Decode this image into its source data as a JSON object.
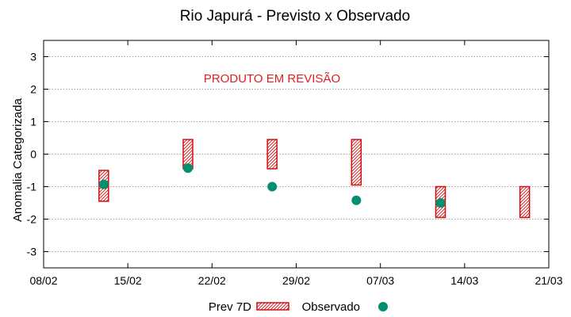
{
  "chart_data": {
    "type": "scatter",
    "title": "Rio Japurá - Previsto x Observado",
    "ylabel": "Anomalia Categorizada",
    "xlabel": "",
    "ylim": [
      -3.5,
      3.5
    ],
    "yticks": [
      -3,
      -2,
      -1,
      0,
      1,
      2,
      3
    ],
    "xlim": [
      "08/02",
      "21/03"
    ],
    "xticks": [
      "08/02",
      "15/02",
      "22/02",
      "29/02",
      "07/03",
      "14/03",
      "21/03"
    ],
    "grid": true,
    "annotation": {
      "text": "PRODUTO EM REVISÃO",
      "color": "#e02020"
    },
    "legend": {
      "position": "bottom",
      "entries": [
        "Prev 7D",
        "Observado"
      ]
    },
    "series": [
      {
        "name": "Prev 7D",
        "kind": "range-bar",
        "color": "#d01010",
        "points": [
          {
            "x": "13/02",
            "low": -1.45,
            "high": -0.5
          },
          {
            "x": "20/02",
            "low": -0.45,
            "high": 0.45
          },
          {
            "x": "27/02",
            "low": -0.45,
            "high": 0.45
          },
          {
            "x": "05/03",
            "low": -0.95,
            "high": 0.45
          },
          {
            "x": "12/03",
            "low": -1.95,
            "high": -1.0
          },
          {
            "x": "19/03",
            "low": -1.95,
            "high": -1.0
          }
        ]
      },
      {
        "name": "Observado",
        "kind": "points",
        "color": "#009070",
        "points": [
          {
            "x": "13/02",
            "y": -0.93
          },
          {
            "x": "20/02",
            "y": -0.43
          },
          {
            "x": "27/02",
            "y": -1.0
          },
          {
            "x": "05/03",
            "y": -1.42
          },
          {
            "x": "12/03",
            "y": -1.5
          }
        ]
      }
    ]
  }
}
